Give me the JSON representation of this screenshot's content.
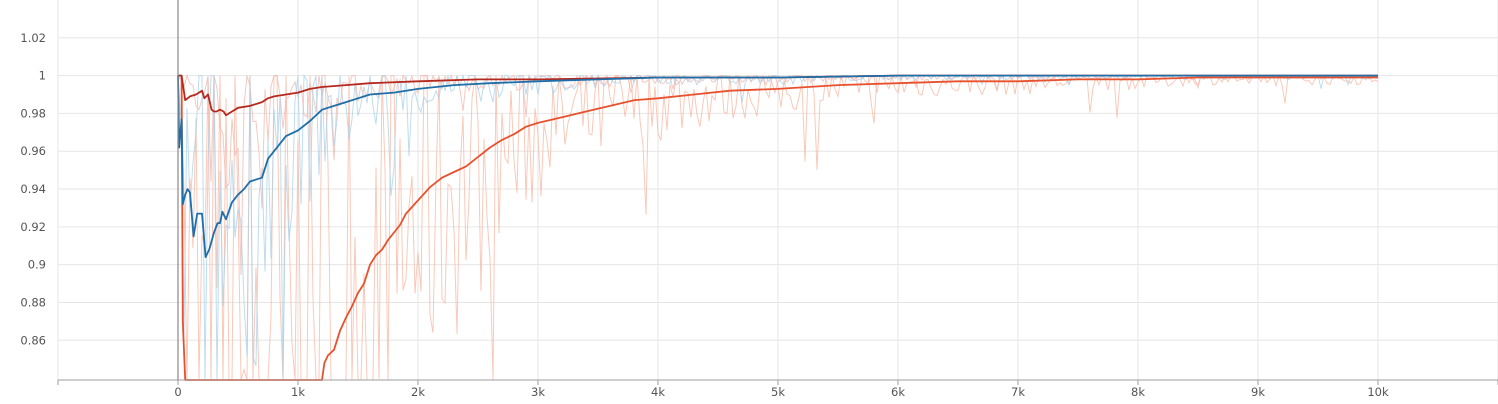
{
  "chart_data": {
    "type": "line",
    "title": "",
    "xlabel": "",
    "ylabel": "",
    "xlim": [
      -1000,
      11000
    ],
    "ylim": [
      0.839,
      1.04
    ],
    "x_ticks": [
      {
        "value": -1000,
        "label": ""
      },
      {
        "value": 0,
        "label": "0"
      },
      {
        "value": 1000,
        "label": "1k"
      },
      {
        "value": 2000,
        "label": "2k"
      },
      {
        "value": 3000,
        "label": "3k"
      },
      {
        "value": 4000,
        "label": "4k"
      },
      {
        "value": 5000,
        "label": "5k"
      },
      {
        "value": 6000,
        "label": "6k"
      },
      {
        "value": 7000,
        "label": "7k"
      },
      {
        "value": 8000,
        "label": "8k"
      },
      {
        "value": 9000,
        "label": "9k"
      },
      {
        "value": 10000,
        "label": "10k"
      },
      {
        "value": 11000,
        "label": ""
      }
    ],
    "y_ticks": [
      {
        "value": 0.86,
        "label": "0.86"
      },
      {
        "value": 0.88,
        "label": "0.88"
      },
      {
        "value": 0.9,
        "label": "0.9"
      },
      {
        "value": 0.92,
        "label": "0.92"
      },
      {
        "value": 0.94,
        "label": "0.94"
      },
      {
        "value": 0.96,
        "label": "0.96"
      },
      {
        "value": 0.98,
        "label": "0.98"
      },
      {
        "value": 1,
        "label": "1"
      },
      {
        "value": 1.02,
        "label": "1.02"
      }
    ],
    "grid": true,
    "series": [
      {
        "color": "#e8512e",
        "raw_color": "#f7b7a2",
        "x": [
          0,
          30,
          40,
          60,
          1200,
          1220,
          1250,
          1300,
          1350,
          1400,
          1450,
          1500,
          1550,
          1600,
          1650,
          1700,
          1750,
          1800,
          1850,
          1900,
          2000,
          2100,
          2200,
          2300,
          2400,
          2500,
          2600,
          2700,
          2800,
          2900,
          3000,
          3200,
          3400,
          3600,
          3800,
          4000,
          4300,
          4600,
          5000,
          5500,
          6000,
          6500,
          7000,
          7500,
          8000,
          8500,
          9000,
          9500,
          10000
        ],
        "y": [
          1.0,
          1.0,
          0.87,
          0.839,
          0.839,
          0.848,
          0.852,
          0.855,
          0.865,
          0.872,
          0.878,
          0.885,
          0.89,
          0.9,
          0.905,
          0.908,
          0.913,
          0.917,
          0.921,
          0.927,
          0.934,
          0.941,
          0.946,
          0.949,
          0.952,
          0.957,
          0.962,
          0.966,
          0.969,
          0.973,
          0.975,
          0.978,
          0.981,
          0.984,
          0.987,
          0.988,
          0.99,
          0.992,
          0.993,
          0.995,
          0.996,
          0.997,
          0.997,
          0.998,
          0.998,
          0.999,
          0.999,
          0.999,
          0.999
        ]
      },
      {
        "color": "#b5281e",
        "raw_color": "#f2b5ad",
        "x": [
          0,
          30,
          60,
          100,
          150,
          200,
          220,
          250,
          280,
          300,
          320,
          350,
          380,
          400,
          450,
          500,
          600,
          700,
          750,
          800,
          900,
          1000,
          1100,
          1200,
          1400,
          1600,
          2000,
          2500,
          3000,
          4000,
          5000,
          6000,
          7000,
          8000,
          9000,
          10000
        ],
        "y": [
          1.0,
          1.0,
          0.987,
          0.989,
          0.99,
          0.992,
          0.988,
          0.99,
          0.982,
          0.981,
          0.981,
          0.982,
          0.981,
          0.979,
          0.981,
          0.983,
          0.984,
          0.986,
          0.988,
          0.989,
          0.99,
          0.991,
          0.993,
          0.994,
          0.995,
          0.996,
          0.997,
          0.998,
          0.998,
          0.999,
          0.999,
          1.0,
          1.0,
          1.0,
          1.0,
          1.0
        ]
      },
      {
        "color": "#1f6ea8",
        "raw_color": "#a9d0e8",
        "x": [
          0,
          10,
          30,
          40,
          60,
          80,
          100,
          130,
          160,
          200,
          230,
          260,
          300,
          330,
          350,
          370,
          400,
          450,
          500,
          550,
          600,
          700,
          750,
          800,
          850,
          900,
          1000,
          1100,
          1200,
          1300,
          1400,
          1500,
          1600,
          1800,
          2000,
          2300,
          2600,
          3000,
          3500,
          4000,
          5000,
          6000,
          7000,
          8000,
          9000,
          10000
        ],
        "y": [
          1.0,
          0.962,
          0.977,
          0.932,
          0.937,
          0.94,
          0.938,
          0.915,
          0.927,
          0.927,
          0.904,
          0.908,
          0.917,
          0.922,
          0.922,
          0.928,
          0.924,
          0.933,
          0.937,
          0.94,
          0.944,
          0.946,
          0.956,
          0.96,
          0.964,
          0.968,
          0.971,
          0.976,
          0.982,
          0.984,
          0.986,
          0.988,
          0.99,
          0.991,
          0.993,
          0.995,
          0.996,
          0.997,
          0.998,
          0.999,
          0.999,
          1.0,
          1.0,
          1.0,
          1.0,
          1.0
        ]
      }
    ]
  }
}
